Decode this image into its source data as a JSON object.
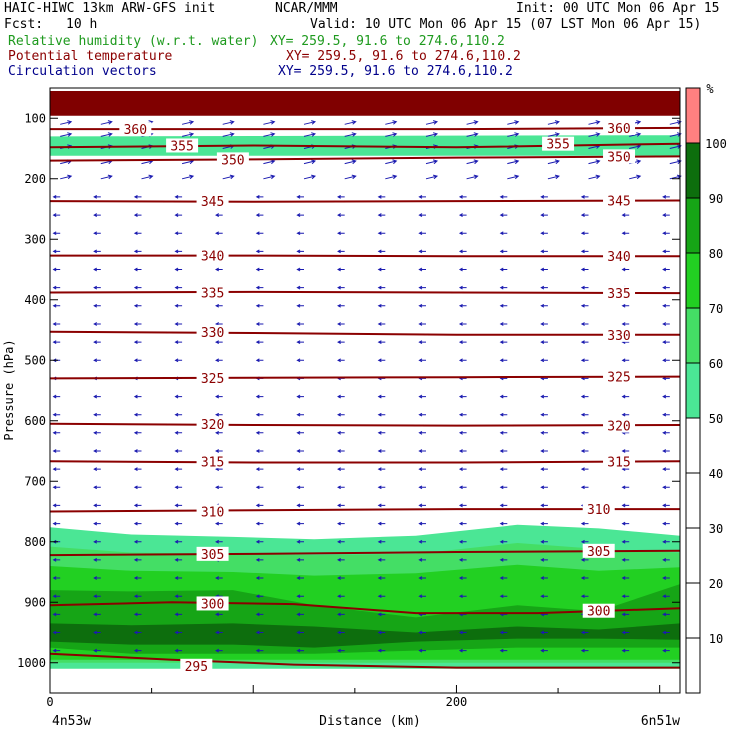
{
  "header": {
    "model_line": "HAIC-HIWC 13km ARW-GFS init",
    "org": "NCAR/MMM",
    "init": "Init: 00 UTC Mon 06 Apr 15",
    "fcst_label": "Fcst:",
    "fcst_value": "10 h",
    "valid": "Valid: 10 UTC Mon 06 Apr 15 (07 LST Mon 06 Apr 15)",
    "fields": [
      {
        "name": "Relative humidity (w.r.t. water)",
        "xy": "XY= 259.5, 91.6 to 274.6,110.2",
        "color": "#1e9a1e"
      },
      {
        "name": "Potential temperature",
        "xy": "XY= 259.5, 91.6 to 274.6,110.2",
        "color": "#8b0000"
      },
      {
        "name": "Circulation vectors",
        "xy": "XY= 259.5, 91.6 to 274.6,110.2",
        "color": "#00008b"
      }
    ]
  },
  "chart_data": {
    "type": "heatmap",
    "title": "",
    "xlabel": "Distance (km)",
    "ylabel": "Pressure (hPa)",
    "xlim": [
      0,
      310
    ],
    "ylim": [
      1050,
      50
    ],
    "x_ticks": [
      0,
      200
    ],
    "y_ticks": [
      100,
      200,
      300,
      400,
      500,
      600,
      700,
      800,
      900,
      1000
    ],
    "x_end_labels": {
      "left": "4n53w",
      "right": "6n51w"
    },
    "colorbar": {
      "unit": "%",
      "levels": [
        10,
        20,
        30,
        40,
        50,
        60,
        70,
        80,
        90,
        100
      ],
      "colors": [
        {
          "range": [
            50,
            60
          ],
          "color": "#4be695"
        },
        {
          "range": [
            60,
            70
          ],
          "color": "#44de65"
        },
        {
          "range": [
            70,
            80
          ],
          "color": "#22d022"
        },
        {
          "range": [
            80,
            90
          ],
          "color": "#16a516"
        },
        {
          "range": [
            90,
            100
          ],
          "color": "#0d6e0d"
        },
        {
          "range": [
            100,
            110
          ],
          "color": "#ff8080"
        },
        {
          "range": [
            110,
            200
          ],
          "color": "#800000"
        }
      ]
    },
    "rh_layers": [
      {
        "level": 50,
        "x": [
          0,
          40,
          90,
          130,
          180,
          230,
          270,
          310
        ],
        "top": [
          776,
          788,
          792,
          796,
          790,
          772,
          778,
          790
        ],
        "bottom": [
          1010,
          1010,
          1010,
          1010,
          1010,
          1010,
          1010,
          1010
        ]
      },
      {
        "level": 60,
        "x": [
          0,
          40,
          90,
          130,
          180,
          230,
          270,
          310
        ],
        "top": [
          808,
          818,
          820,
          822,
          820,
          802,
          812,
          818
        ],
        "bottom": [
          1000,
          1000,
          1000,
          1000,
          1000,
          1000,
          1000,
          1000
        ]
      },
      {
        "level": 70,
        "x": [
          0,
          40,
          90,
          130,
          180,
          230,
          270,
          310
        ],
        "top": [
          840,
          848,
          850,
          856,
          852,
          838,
          848,
          842
        ],
        "bottom": [
          995,
          995,
          995,
          995,
          995,
          995,
          995,
          995
        ]
      },
      {
        "level": 80,
        "x": [
          0,
          40,
          90,
          130,
          180,
          230,
          270,
          310
        ],
        "top": [
          880,
          882,
          880,
          905,
          925,
          905,
          915,
          870
        ],
        "bottom": [
          975,
          985,
          985,
          985,
          980,
          975,
          975,
          975
        ]
      },
      {
        "level": 90,
        "x": [
          0,
          40,
          90,
          130,
          180,
          230,
          270,
          310
        ],
        "top": [
          935,
          938,
          935,
          940,
          950,
          940,
          945,
          935
        ],
        "bottom": [
          965,
          970,
          970,
          975,
          965,
          960,
          960,
          962
        ]
      },
      {
        "level": 50,
        "x": [
          0,
          310
        ],
        "top": [
          130,
          128
        ],
        "bottom": [
          162,
          162
        ]
      },
      {
        "level": 110,
        "x": [
          0,
          310
        ],
        "top": [
          55,
          55
        ],
        "bottom": [
          96,
          96
        ]
      }
    ],
    "theta_contours": [
      {
        "value": 295,
        "x": [
          0,
          60,
          120,
          200,
          310
        ],
        "p": [
          985,
          995,
          1003,
          1008,
          1008
        ]
      },
      {
        "value": 300,
        "x": [
          0,
          60,
          120,
          180,
          240,
          310
        ],
        "p": [
          905,
          900,
          903,
          918,
          918,
          910
        ]
      },
      {
        "value": 305,
        "x": [
          0,
          100,
          200,
          310
        ],
        "p": [
          822,
          820,
          817,
          815
        ]
      },
      {
        "value": 310,
        "x": [
          0,
          100,
          200,
          310
        ],
        "p": [
          750,
          748,
          746,
          746
        ]
      },
      {
        "value": 315,
        "x": [
          0,
          100,
          200,
          310
        ],
        "p": [
          667,
          669,
          669,
          667
        ]
      },
      {
        "value": 320,
        "x": [
          0,
          100,
          200,
          310
        ],
        "p": [
          605,
          607,
          608,
          607
        ]
      },
      {
        "value": 325,
        "x": [
          0,
          100,
          200,
          310
        ],
        "p": [
          530,
          529,
          528,
          527
        ]
      },
      {
        "value": 330,
        "x": [
          0,
          100,
          200,
          310
        ],
        "p": [
          453,
          455,
          458,
          458
        ]
      },
      {
        "value": 335,
        "x": [
          0,
          100,
          200,
          310
        ],
        "p": [
          388,
          387,
          388,
          389
        ]
      },
      {
        "value": 340,
        "x": [
          0,
          100,
          200,
          310
        ],
        "p": [
          327,
          327,
          328,
          328
        ]
      },
      {
        "value": 345,
        "x": [
          0,
          100,
          200,
          310
        ],
        "p": [
          237,
          238,
          237,
          236
        ]
      },
      {
        "value": 350,
        "x": [
          0,
          100,
          200,
          310
        ],
        "p": [
          170,
          168,
          165,
          163
        ]
      },
      {
        "value": 355,
        "x": [
          0,
          100,
          200,
          310
        ],
        "p": [
          148,
          145,
          148,
          142
        ]
      },
      {
        "value": 360,
        "x": [
          0,
          100,
          200,
          310
        ],
        "p": [
          118,
          118,
          118,
          116
        ]
      }
    ],
    "theta_labels": [
      {
        "text": "295",
        "x": 72,
        "p": 1005
      },
      {
        "text": "300",
        "x": 80,
        "p": 902
      },
      {
        "text": "300",
        "x": 270,
        "p": 914
      },
      {
        "text": "305",
        "x": 80,
        "p": 820
      },
      {
        "text": "305",
        "x": 270,
        "p": 815
      },
      {
        "text": "310",
        "x": 80,
        "p": 750
      },
      {
        "text": "310",
        "x": 270,
        "p": 746
      },
      {
        "text": "315",
        "x": 80,
        "p": 667
      },
      {
        "text": "315",
        "x": 280,
        "p": 667
      },
      {
        "text": "320",
        "x": 80,
        "p": 605
      },
      {
        "text": "320",
        "x": 280,
        "p": 608
      },
      {
        "text": "325",
        "x": 80,
        "p": 529
      },
      {
        "text": "325",
        "x": 280,
        "p": 527
      },
      {
        "text": "330",
        "x": 80,
        "p": 453
      },
      {
        "text": "330",
        "x": 280,
        "p": 458
      },
      {
        "text": "335",
        "x": 80,
        "p": 388
      },
      {
        "text": "335",
        "x": 280,
        "p": 389
      },
      {
        "text": "340",
        "x": 80,
        "p": 327
      },
      {
        "text": "340",
        "x": 280,
        "p": 328
      },
      {
        "text": "345",
        "x": 80,
        "p": 237
      },
      {
        "text": "345",
        "x": 280,
        "p": 236
      },
      {
        "text": "350",
        "x": 90,
        "p": 168
      },
      {
        "text": "350",
        "x": 280,
        "p": 163
      },
      {
        "text": "355",
        "x": 65,
        "p": 145
      },
      {
        "text": "355",
        "x": 250,
        "p": 142
      },
      {
        "text": "360",
        "x": 42,
        "p": 118
      },
      {
        "text": "360",
        "x": 280,
        "p": 116
      }
    ],
    "vectors": {
      "x": [
        5,
        25,
        45,
        65,
        85,
        105,
        125,
        145,
        165,
        185,
        205,
        225,
        245,
        265,
        285,
        305
      ],
      "p": [
        110,
        130,
        150,
        175,
        200,
        230,
        260,
        290,
        320,
        350,
        380,
        410,
        440,
        470,
        500,
        530,
        560,
        590,
        620,
        650,
        680,
        710,
        740,
        770,
        800,
        830,
        860,
        890,
        920,
        950,
        980
      ],
      "upper_u": 5,
      "upper_w": -1.2,
      "lower_u": -3
    }
  }
}
